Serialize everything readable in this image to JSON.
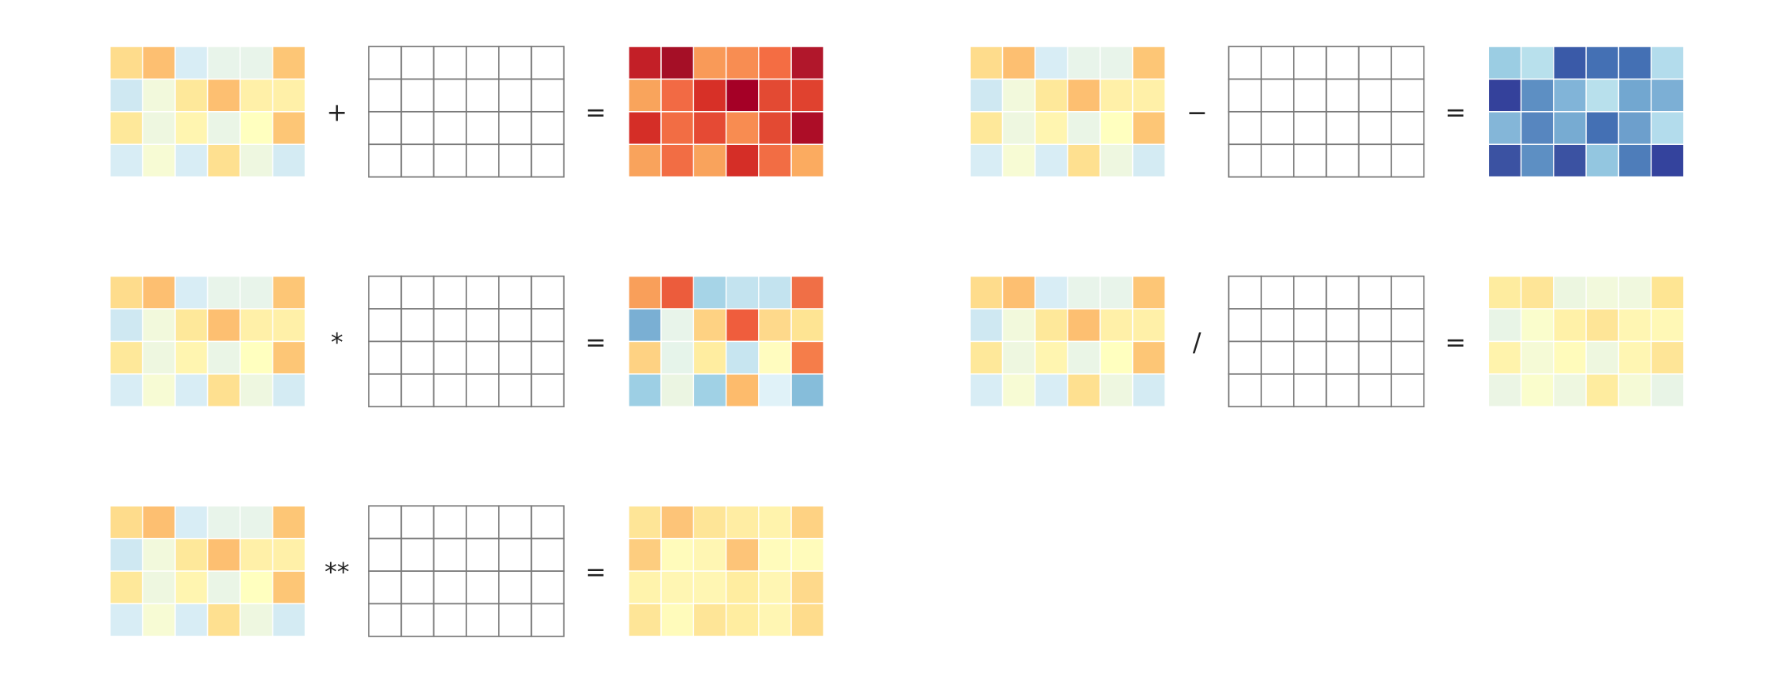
{
  "left_matrix": [
    [
      "#fedc8c",
      "#fdbf71",
      "#d8edf5",
      "#e8f4ea",
      "#e8f4ea",
      "#fdc676"
    ],
    [
      "#cfe8f2",
      "#f2f9dc",
      "#fee89a",
      "#fdbf71",
      "#fff0a8",
      "#fff0a8"
    ],
    [
      "#fee89a",
      "#eef7e0",
      "#fff5b0",
      "#eaf5e6",
      "#ffffbf",
      "#fdc676"
    ],
    [
      "#d8edf5",
      "#f7fbd4",
      "#d8edf5",
      "#fee090",
      "#eef7e0",
      "#d4ebf3"
    ]
  ],
  "operations": [
    {
      "operator": "+",
      "equals": "=",
      "result": [
        [
          "#c31f27",
          "#a50f26",
          "#f99a58",
          "#f88d52",
          "#f46d43",
          "#b1172b"
        ],
        [
          "#f9a45c",
          "#f26a44",
          "#d73027",
          "#a50026",
          "#e34a33",
          "#e0422f"
        ],
        [
          "#d52e27",
          "#f26d44",
          "#e54a34",
          "#f88c51",
          "#e34a33",
          "#ad0d27"
        ],
        [
          "#f9a35c",
          "#f26d44",
          "#f9a35c",
          "#d52e27",
          "#f26d44",
          "#fbab60"
        ]
      ]
    },
    {
      "operator": "−",
      "equals": "=",
      "result": [
        [
          "#9bcde3",
          "#b8e0ec",
          "#3a5aa8",
          "#4470b4",
          "#4470b4",
          "#b3dcec"
        ],
        [
          "#34419b",
          "#5d8fc3",
          "#81b4d8",
          "#b8e0ec",
          "#72a7d0",
          "#7cafd5"
        ],
        [
          "#84b6d8",
          "#5786bf",
          "#77abd2",
          "#4470b4",
          "#6d9fcc",
          "#b3dcec"
        ],
        [
          "#3b52a2",
          "#5d8fc3",
          "#3b52a2",
          "#93c6e0",
          "#4e7dba",
          "#34439d"
        ]
      ]
    },
    {
      "operator": "*",
      "equals": "=",
      "result": [
        [
          "#f99f5a",
          "#ec5c3c",
          "#a6d4e7",
          "#c3e3ef",
          "#c3e3ef",
          "#f06f46"
        ],
        [
          "#7aafd3",
          "#e8f4ea",
          "#fed283",
          "#ef5d3d",
          "#fed98b",
          "#fee493"
        ],
        [
          "#fed283",
          "#e6f4ea",
          "#ffeda0",
          "#c7e5f0",
          "#fffcbf",
          "#f57d4a"
        ],
        [
          "#9dcfe4",
          "#ebf5e2",
          "#a0d1e5",
          "#fdbb6c",
          "#e0f2f8",
          "#86bdda"
        ]
      ]
    },
    {
      "operator": "/",
      "equals": "=",
      "result": [
        [
          "#feec9f",
          "#fee597",
          "#ecf6e0",
          "#f2f9dc",
          "#f0f8de",
          "#fee593"
        ],
        [
          "#e8f4e6",
          "#fafdcc",
          "#fff1a8",
          "#fee597",
          "#fff6b3",
          "#fff8b6"
        ],
        [
          "#fff3ac",
          "#f5fad6",
          "#fffbbb",
          "#eef7df",
          "#fff6b3",
          "#fee597"
        ],
        [
          "#ebf5e4",
          "#fafdcc",
          "#eef7e0",
          "#feec9f",
          "#f5fad6",
          "#e8f4e6"
        ]
      ]
    },
    {
      "operator": "**",
      "equals": "=",
      "result": [
        [
          "#fee597",
          "#fdc478",
          "#fee597",
          "#ffeda3",
          "#fff3ac",
          "#fed283"
        ],
        [
          "#fdcd7f",
          "#fffbbb",
          "#fff6b3",
          "#fdc478",
          "#fffbbb",
          "#fffbbb"
        ],
        [
          "#fff3ac",
          "#fff6b3",
          "#fff6b3",
          "#ffeda0",
          "#fff6b3",
          "#fed98b"
        ],
        [
          "#fee597",
          "#fffbbb",
          "#fee597",
          "#ffeda0",
          "#fff6b3",
          "#fedc8c"
        ]
      ]
    }
  ]
}
